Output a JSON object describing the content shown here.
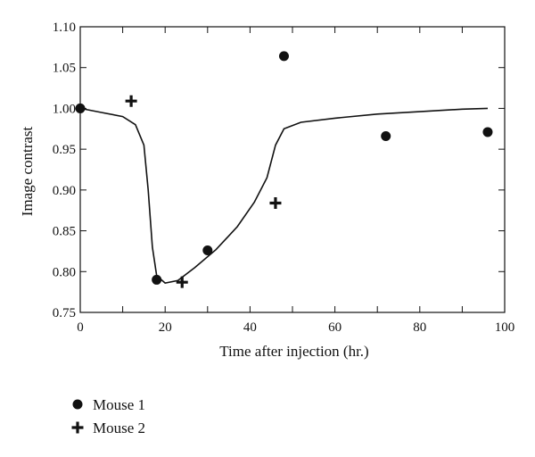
{
  "chart_data": {
    "type": "scatter",
    "xlabel": "Time after injection (hr.)",
    "ylabel": "Image contrast",
    "xlim": [
      0,
      100
    ],
    "ylim": [
      0.75,
      1.1
    ],
    "x_ticks": [
      0,
      20,
      40,
      60,
      80,
      100
    ],
    "x_tick_labels": [
      "0",
      "20",
      "40",
      "60",
      "80",
      "100"
    ],
    "y_ticks": [
      0.75,
      0.8,
      0.85,
      0.9,
      0.95,
      1.0,
      1.05,
      1.1
    ],
    "y_tick_labels": [
      "0.75",
      "0.80",
      "0.85",
      "0.90",
      "0.95",
      "1.00",
      "1.05",
      "1.10"
    ],
    "grid": false,
    "legend_position": "below",
    "series": [
      {
        "name": "Mouse 1",
        "marker": "circle",
        "color": "#111111",
        "points": [
          {
            "x": 0,
            "y": 1.0
          },
          {
            "x": 18,
            "y": 0.79
          },
          {
            "x": 30,
            "y": 0.826
          },
          {
            "x": 48,
            "y": 1.064
          },
          {
            "x": 72,
            "y": 0.966
          },
          {
            "x": 96,
            "y": 0.971
          }
        ]
      },
      {
        "name": "Mouse 2",
        "marker": "plus",
        "color": "#111111",
        "points": [
          {
            "x": 12,
            "y": 1.009
          },
          {
            "x": 24,
            "y": 0.787
          },
          {
            "x": 46,
            "y": 0.884
          }
        ]
      }
    ],
    "fit_curve": {
      "color": "#111111",
      "points": [
        {
          "x": 0,
          "y": 1.0
        },
        {
          "x": 5,
          "y": 0.995
        },
        {
          "x": 10,
          "y": 0.99
        },
        {
          "x": 13,
          "y": 0.98
        },
        {
          "x": 15,
          "y": 0.955
        },
        {
          "x": 16,
          "y": 0.9
        },
        {
          "x": 17,
          "y": 0.83
        },
        {
          "x": 18,
          "y": 0.795
        },
        {
          "x": 20,
          "y": 0.786
        },
        {
          "x": 23,
          "y": 0.789
        },
        {
          "x": 27,
          "y": 0.805
        },
        {
          "x": 32,
          "y": 0.827
        },
        {
          "x": 37,
          "y": 0.855
        },
        {
          "x": 41,
          "y": 0.885
        },
        {
          "x": 44,
          "y": 0.915
        },
        {
          "x": 46,
          "y": 0.955
        },
        {
          "x": 48,
          "y": 0.975
        },
        {
          "x": 52,
          "y": 0.983
        },
        {
          "x": 60,
          "y": 0.988
        },
        {
          "x": 70,
          "y": 0.993
        },
        {
          "x": 80,
          "y": 0.996
        },
        {
          "x": 90,
          "y": 0.999
        },
        {
          "x": 96,
          "y": 1.0
        }
      ]
    }
  }
}
